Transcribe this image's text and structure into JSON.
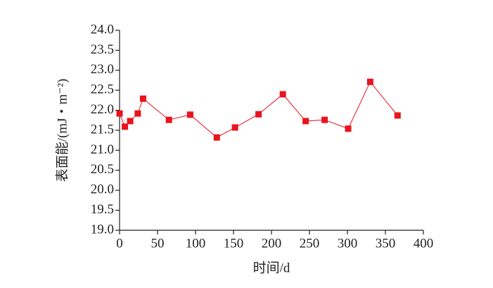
{
  "chart_data": {
    "type": "line",
    "x_label": "时间/d",
    "y_label": "表面能/(mJ・m⁻²)",
    "series": [
      {
        "color": "#e8141e",
        "x": [
          0,
          7,
          14,
          24,
          31,
          65,
          93,
          128,
          152,
          183,
          215,
          245,
          270,
          301,
          330,
          366
        ],
        "values": [
          21.92,
          21.59,
          21.73,
          21.92,
          22.29,
          21.76,
          21.89,
          21.32,
          21.57,
          21.9,
          22.4,
          21.73,
          21.76,
          21.54,
          22.71,
          21.87
        ]
      }
    ],
    "xlim": [
      0,
      400
    ],
    "xticks": [
      0,
      50,
      100,
      150,
      200,
      250,
      300,
      350,
      400
    ],
    "ylim": [
      19,
      24
    ],
    "yticks": [
      {
        "value": 19,
        "label": "19.0"
      },
      {
        "value": 19.5,
        "label": "19.5"
      },
      {
        "value": 20,
        "label": "20.0"
      },
      {
        "value": 20.5,
        "label": "20.5"
      },
      {
        "value": 21,
        "label": "21.0"
      },
      {
        "value": 21.5,
        "label": "21.5"
      },
      {
        "value": 22,
        "label": "22.0"
      },
      {
        "value": 22.5,
        "label": "22.5"
      },
      {
        "value": 23,
        "label": "23.0"
      },
      {
        "value": 23.5,
        "label": "23.5"
      },
      {
        "value": 24,
        "label": "24.0"
      }
    ],
    "marker": "square"
  }
}
